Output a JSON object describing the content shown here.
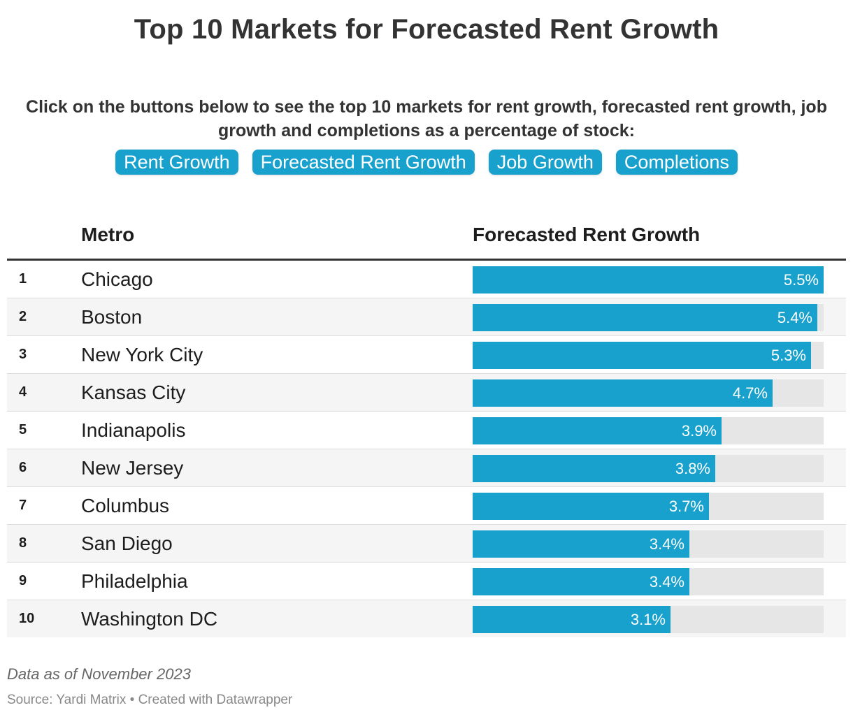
{
  "title": "Top 10 Markets for Forecasted Rent Growth",
  "intro": "Click on the buttons below to see the top 10 markets for rent growth, forecasted rent growth, job growth and completions as a percentage of stock:",
  "buttons": [
    "Rent Growth",
    "Forecasted Rent Growth",
    "Job Growth",
    "Completions"
  ],
  "columns": {
    "metro": "Metro",
    "value": "Forecasted Rent Growth"
  },
  "colors": {
    "bar": "#18a1cd",
    "track": "#e6e6e6"
  },
  "chart_data": {
    "type": "bar",
    "orientation": "horizontal",
    "xlim": [
      0,
      5.5
    ],
    "unit": "%",
    "rows": [
      {
        "rank": "1",
        "metro": "Chicago",
        "value": 5.5,
        "label": "5.5%"
      },
      {
        "rank": "2",
        "metro": "Boston",
        "value": 5.4,
        "label": "5.4%"
      },
      {
        "rank": "3",
        "metro": "New York City",
        "value": 5.3,
        "label": "5.3%"
      },
      {
        "rank": "4",
        "metro": "Kansas City",
        "value": 4.7,
        "label": "4.7%"
      },
      {
        "rank": "5",
        "metro": "Indianapolis",
        "value": 3.9,
        "label": "3.9%"
      },
      {
        "rank": "6",
        "metro": "New Jersey",
        "value": 3.8,
        "label": "3.8%"
      },
      {
        "rank": "7",
        "metro": "Columbus",
        "value": 3.7,
        "label": "3.7%"
      },
      {
        "rank": "8",
        "metro": "San Diego",
        "value": 3.4,
        "label": "3.4%"
      },
      {
        "rank": "9",
        "metro": "Philadelphia",
        "value": 3.4,
        "label": "3.4%"
      },
      {
        "rank": "10",
        "metro": "Washington DC",
        "value": 3.1,
        "label": "3.1%"
      }
    ]
  },
  "note": "Data as of November 2023",
  "source": "Source: Yardi Matrix • Created with Datawrapper"
}
